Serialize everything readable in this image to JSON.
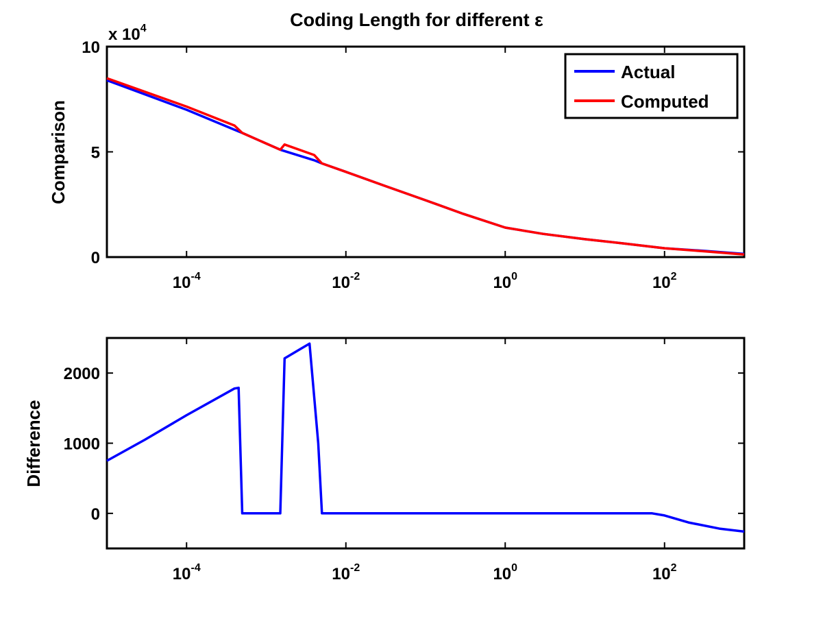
{
  "chart_data": [
    {
      "type": "line",
      "title": "Coding Length for different ε",
      "xlabel": "",
      "ylabel": "Comparison",
      "y_multiplier_label": "x 10",
      "y_multiplier_exponent": "4",
      "xscale": "log",
      "xlim": [
        1e-05,
        1000
      ],
      "ylim": [
        0,
        10
      ],
      "x_ticks": [
        {
          "value": 0.0001,
          "base": "10",
          "exp": "-4"
        },
        {
          "value": 0.01,
          "base": "10",
          "exp": "-2"
        },
        {
          "value": 1,
          "base": "10",
          "exp": "0"
        },
        {
          "value": 100,
          "base": "10",
          "exp": "2"
        }
      ],
      "y_ticks": [
        0,
        5,
        10
      ],
      "y_tick_labels": [
        "0",
        "5",
        "10"
      ],
      "grid": false,
      "legend_position": "top-right",
      "series": [
        {
          "name": "Actual",
          "color": "#0000ff",
          "x": [
            1e-05,
            0.0001,
            0.0004,
            0.0005,
            0.0015,
            0.004,
            0.005,
            0.01,
            0.03,
            0.1,
            0.3,
            1,
            3,
            10,
            30,
            100,
            300,
            1000
          ],
          "y": [
            8.4,
            7.0,
            6.05,
            5.9,
            5.1,
            4.6,
            4.45,
            4.05,
            3.4,
            2.7,
            2.05,
            1.4,
            1.1,
            0.85,
            0.65,
            0.42,
            0.3,
            0.15
          ]
        },
        {
          "name": "Computed",
          "color": "#ff0000",
          "x": [
            1e-05,
            0.0001,
            0.0004,
            0.0005,
            0.0015,
            0.0017,
            0.004,
            0.005,
            0.01,
            0.03,
            0.1,
            0.3,
            1,
            3,
            10,
            30,
            100,
            300,
            1000
          ],
          "y": [
            8.5,
            7.15,
            6.25,
            5.9,
            5.1,
            5.35,
            4.85,
            4.45,
            4.05,
            3.4,
            2.7,
            2.05,
            1.4,
            1.1,
            0.85,
            0.65,
            0.42,
            0.28,
            0.12
          ]
        }
      ]
    },
    {
      "type": "line",
      "title": "",
      "xlabel": "",
      "ylabel": "Difference",
      "xscale": "log",
      "xlim": [
        1e-05,
        1000
      ],
      "ylim": [
        -500,
        2500
      ],
      "x_ticks": [
        {
          "value": 0.0001,
          "base": "10",
          "exp": "-4"
        },
        {
          "value": 0.01,
          "base": "10",
          "exp": "-2"
        },
        {
          "value": 1,
          "base": "10",
          "exp": "0"
        },
        {
          "value": 100,
          "base": "10",
          "exp": "2"
        }
      ],
      "y_ticks": [
        0,
        1000,
        2000
      ],
      "y_tick_labels": [
        "0",
        "1000",
        "2000"
      ],
      "grid": false,
      "series": [
        {
          "color": "#0000ff",
          "x": [
            1e-05,
            3e-05,
            0.0001,
            0.0004,
            0.00045,
            0.0005,
            0.0012,
            0.0015,
            0.0017,
            0.0035,
            0.0045,
            0.005,
            1,
            70,
            100,
            200,
            500,
            1000
          ],
          "y": [
            750,
            1050,
            1400,
            1780,
            1790,
            0,
            0,
            0,
            2210,
            2420,
            1000,
            0,
            0,
            0,
            -30,
            -130,
            -220,
            -260
          ]
        }
      ]
    }
  ]
}
